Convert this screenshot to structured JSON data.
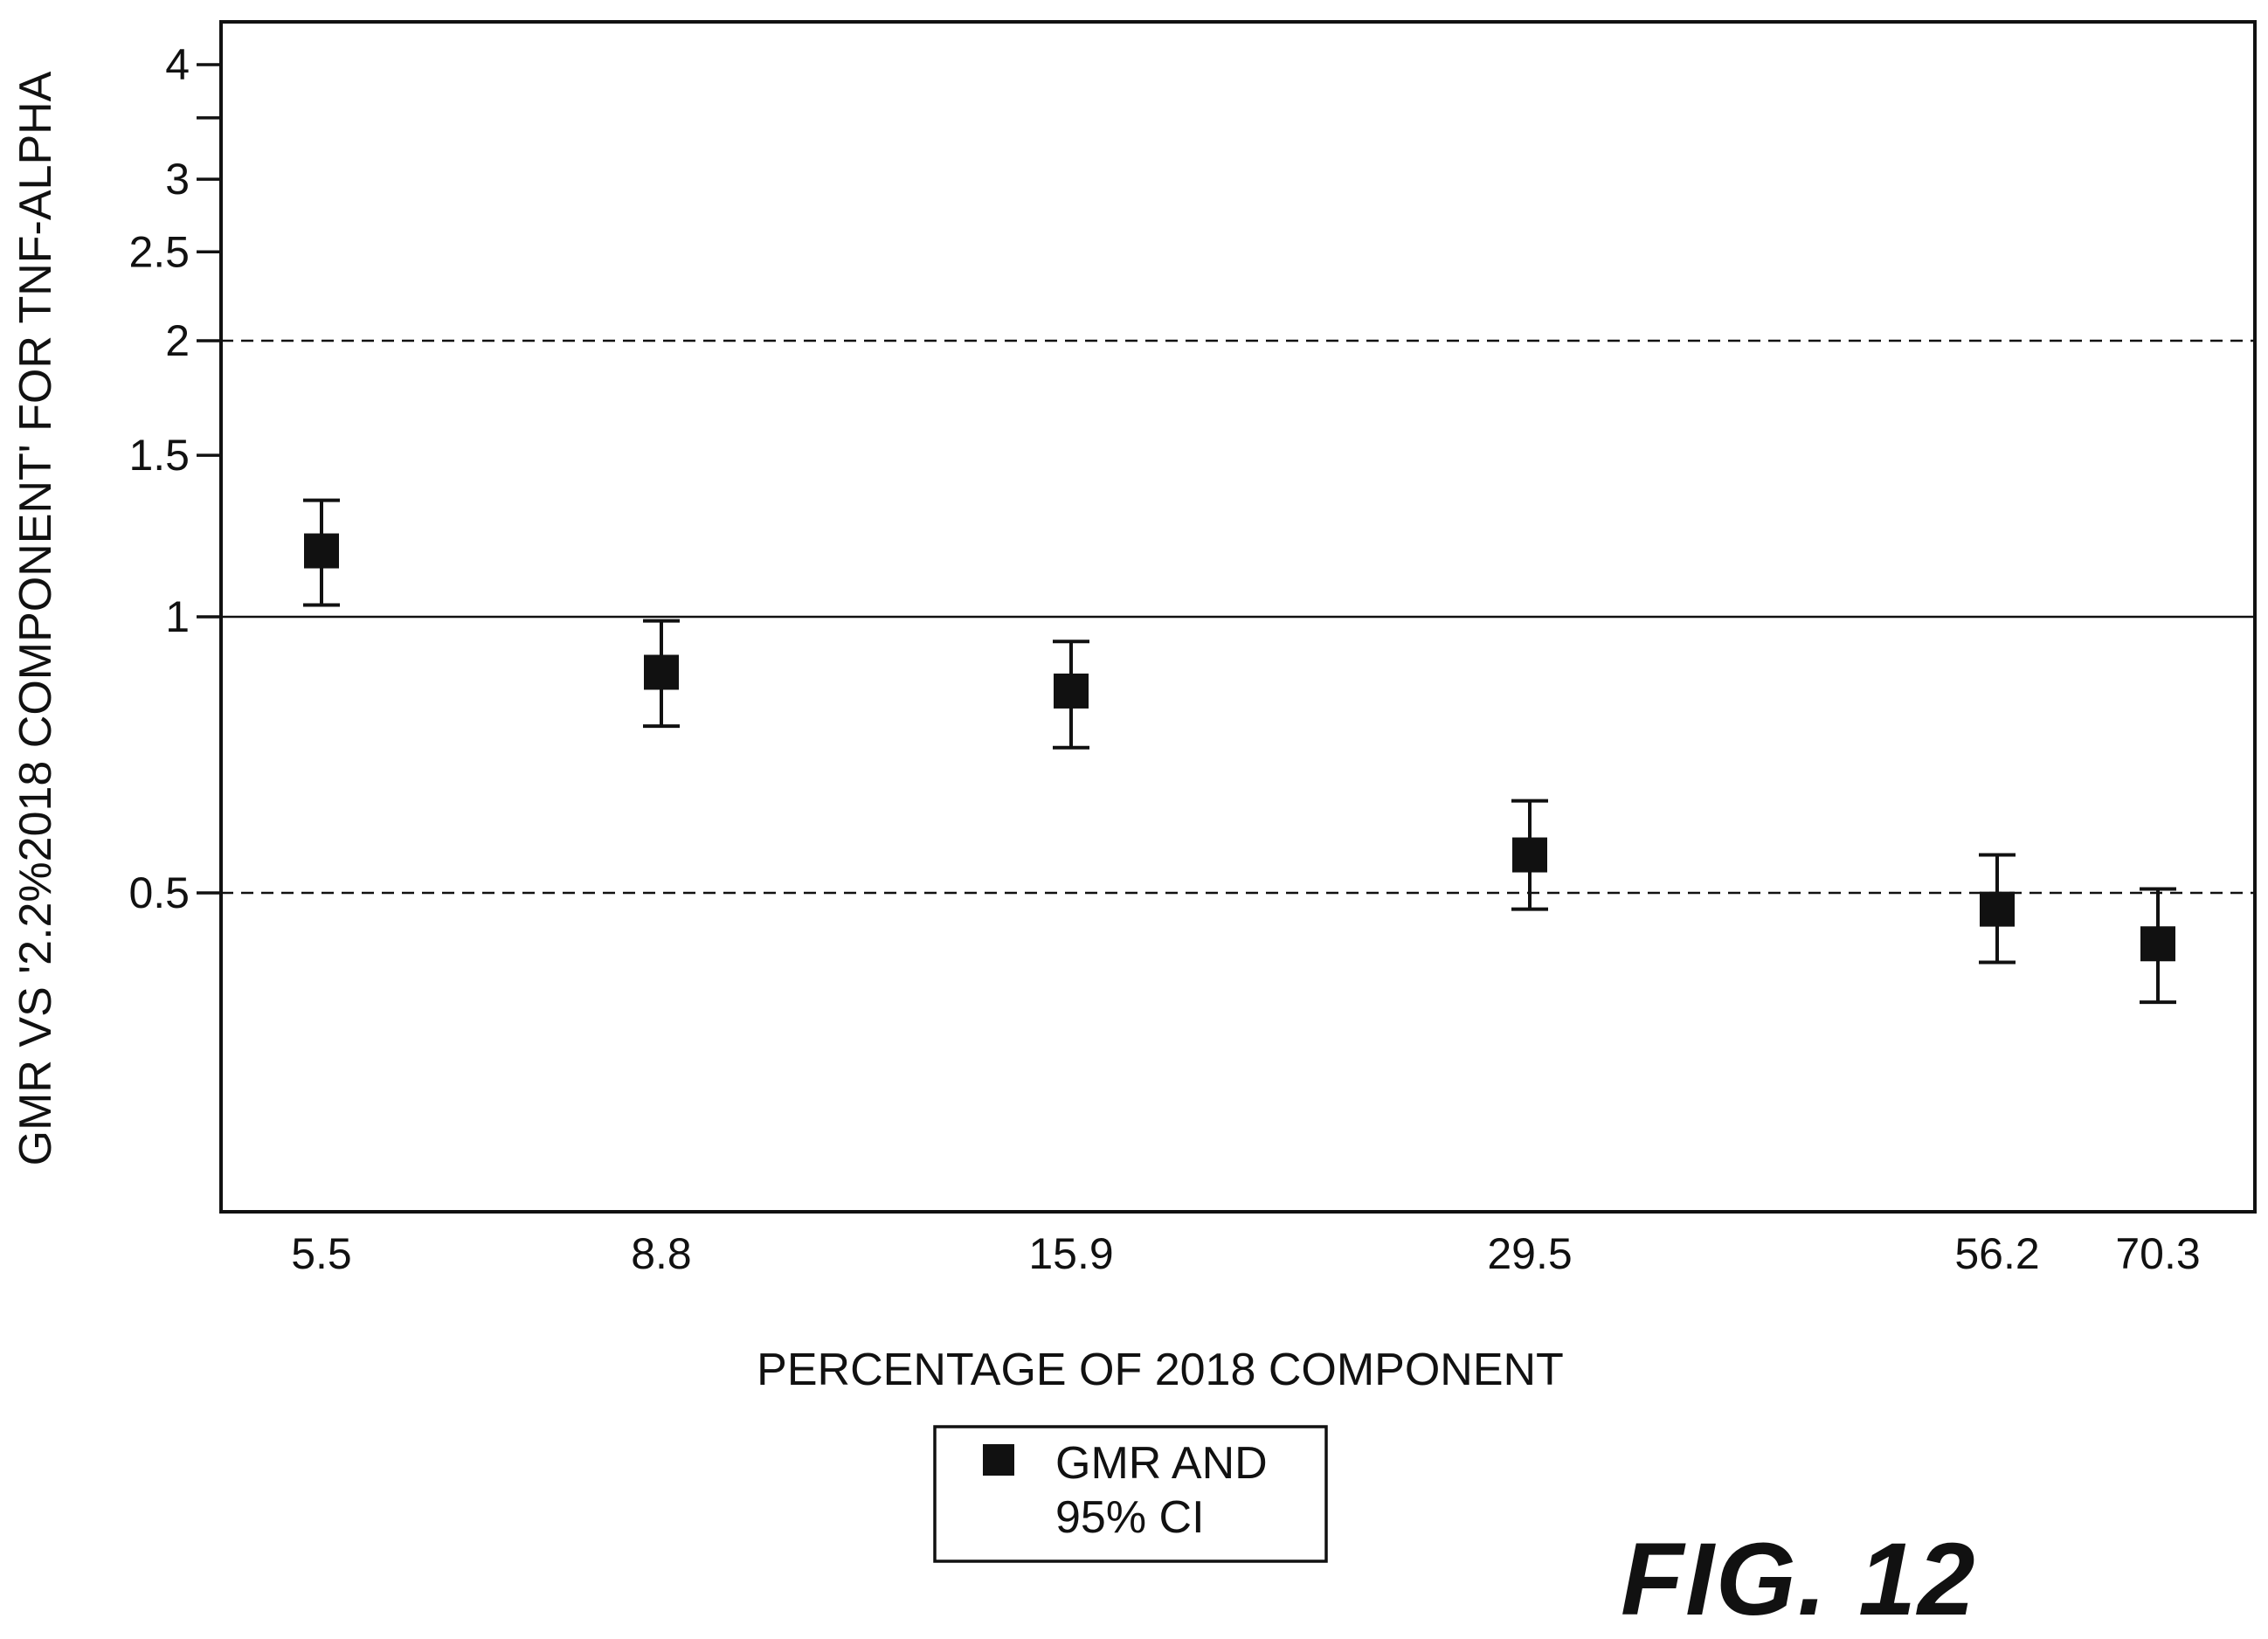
{
  "figure_label": "FIG. 12",
  "chart_data": {
    "type": "scatter",
    "x_scale": "categorical",
    "y_scale": "log",
    "categories": [
      "5.5",
      "8.8",
      "15.9",
      "29.5",
      "56.2",
      "70.3"
    ],
    "xlabel": "PERCENTAGE OF 2018 COMPONENT",
    "ylabel": "GMR VS '2.2%2018 COMPONENT' FOR TNF-ALPHA",
    "yticks": [
      0.5,
      1,
      1.5,
      2,
      2.5,
      3,
      4
    ],
    "ytick_labels": [
      "0.5",
      "1",
      "1.5",
      "2",
      "2.5",
      "3",
      "4"
    ],
    "minor_yticks": [
      3.5
    ],
    "ylim": [
      0.22,
      4.4
    ],
    "series": [
      {
        "name": "GMR AND 95% CI",
        "x": [
          5.5,
          8.8,
          15.9,
          29.5,
          56.2,
          70.3
        ],
        "values": [
          1.18,
          0.87,
          0.83,
          0.55,
          0.48,
          0.44
        ],
        "lower": [
          1.03,
          0.76,
          0.72,
          0.48,
          0.42,
          0.38
        ],
        "upper": [
          1.34,
          0.99,
          0.94,
          0.63,
          0.55,
          0.505
        ]
      }
    ],
    "reference_lines": [
      {
        "y": 2,
        "style": "dashed"
      },
      {
        "y": 1,
        "style": "solid"
      },
      {
        "y": 0.5,
        "style": "dashed"
      }
    ],
    "legend": {
      "position": "bottom-center",
      "label_line1": "GMR AND",
      "label_line2": "95% CI"
    },
    "grid": false,
    "colors": {
      "marker": "#111111",
      "axis": "#111111",
      "background": "#ffffff"
    }
  }
}
